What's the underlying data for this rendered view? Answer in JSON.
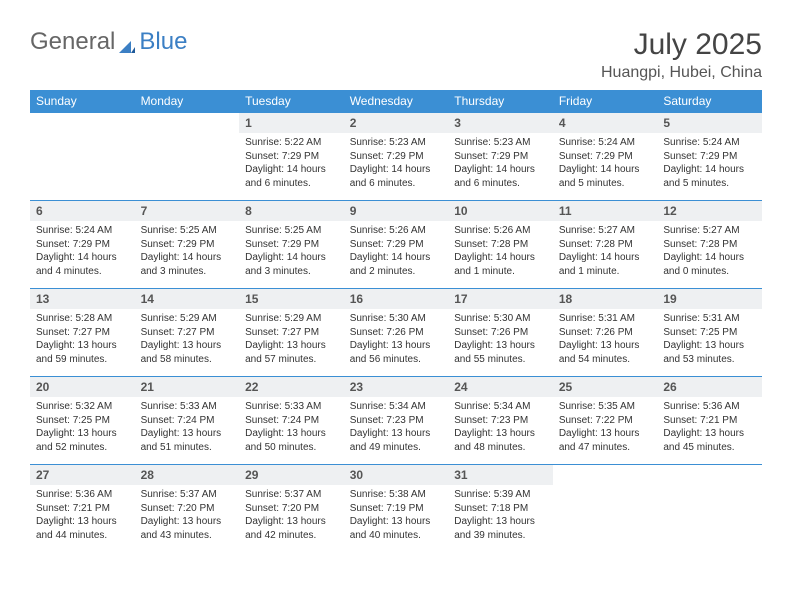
{
  "brand": {
    "part1": "General",
    "part2": "Blue"
  },
  "title": "July 2025",
  "location": "Huangpi, Hubei, China",
  "colors": {
    "header_bg": "#3b8fd4",
    "header_text": "#ffffff",
    "daynum_bg": "#eef0f2",
    "rule": "#3b8fd4",
    "brand_blue": "#3b7fc4",
    "brand_gray": "#666666"
  },
  "weekdays": [
    "Sunday",
    "Monday",
    "Tuesday",
    "Wednesday",
    "Thursday",
    "Friday",
    "Saturday"
  ],
  "weeks": [
    [
      null,
      null,
      {
        "n": "1",
        "sr": "Sunrise: 5:22 AM",
        "ss": "Sunset: 7:29 PM",
        "dl": "Daylight: 14 hours and 6 minutes."
      },
      {
        "n": "2",
        "sr": "Sunrise: 5:23 AM",
        "ss": "Sunset: 7:29 PM",
        "dl": "Daylight: 14 hours and 6 minutes."
      },
      {
        "n": "3",
        "sr": "Sunrise: 5:23 AM",
        "ss": "Sunset: 7:29 PM",
        "dl": "Daylight: 14 hours and 6 minutes."
      },
      {
        "n": "4",
        "sr": "Sunrise: 5:24 AM",
        "ss": "Sunset: 7:29 PM",
        "dl": "Daylight: 14 hours and 5 minutes."
      },
      {
        "n": "5",
        "sr": "Sunrise: 5:24 AM",
        "ss": "Sunset: 7:29 PM",
        "dl": "Daylight: 14 hours and 5 minutes."
      }
    ],
    [
      {
        "n": "6",
        "sr": "Sunrise: 5:24 AM",
        "ss": "Sunset: 7:29 PM",
        "dl": "Daylight: 14 hours and 4 minutes."
      },
      {
        "n": "7",
        "sr": "Sunrise: 5:25 AM",
        "ss": "Sunset: 7:29 PM",
        "dl": "Daylight: 14 hours and 3 minutes."
      },
      {
        "n": "8",
        "sr": "Sunrise: 5:25 AM",
        "ss": "Sunset: 7:29 PM",
        "dl": "Daylight: 14 hours and 3 minutes."
      },
      {
        "n": "9",
        "sr": "Sunrise: 5:26 AM",
        "ss": "Sunset: 7:29 PM",
        "dl": "Daylight: 14 hours and 2 minutes."
      },
      {
        "n": "10",
        "sr": "Sunrise: 5:26 AM",
        "ss": "Sunset: 7:28 PM",
        "dl": "Daylight: 14 hours and 1 minute."
      },
      {
        "n": "11",
        "sr": "Sunrise: 5:27 AM",
        "ss": "Sunset: 7:28 PM",
        "dl": "Daylight: 14 hours and 1 minute."
      },
      {
        "n": "12",
        "sr": "Sunrise: 5:27 AM",
        "ss": "Sunset: 7:28 PM",
        "dl": "Daylight: 14 hours and 0 minutes."
      }
    ],
    [
      {
        "n": "13",
        "sr": "Sunrise: 5:28 AM",
        "ss": "Sunset: 7:27 PM",
        "dl": "Daylight: 13 hours and 59 minutes."
      },
      {
        "n": "14",
        "sr": "Sunrise: 5:29 AM",
        "ss": "Sunset: 7:27 PM",
        "dl": "Daylight: 13 hours and 58 minutes."
      },
      {
        "n": "15",
        "sr": "Sunrise: 5:29 AM",
        "ss": "Sunset: 7:27 PM",
        "dl": "Daylight: 13 hours and 57 minutes."
      },
      {
        "n": "16",
        "sr": "Sunrise: 5:30 AM",
        "ss": "Sunset: 7:26 PM",
        "dl": "Daylight: 13 hours and 56 minutes."
      },
      {
        "n": "17",
        "sr": "Sunrise: 5:30 AM",
        "ss": "Sunset: 7:26 PM",
        "dl": "Daylight: 13 hours and 55 minutes."
      },
      {
        "n": "18",
        "sr": "Sunrise: 5:31 AM",
        "ss": "Sunset: 7:26 PM",
        "dl": "Daylight: 13 hours and 54 minutes."
      },
      {
        "n": "19",
        "sr": "Sunrise: 5:31 AM",
        "ss": "Sunset: 7:25 PM",
        "dl": "Daylight: 13 hours and 53 minutes."
      }
    ],
    [
      {
        "n": "20",
        "sr": "Sunrise: 5:32 AM",
        "ss": "Sunset: 7:25 PM",
        "dl": "Daylight: 13 hours and 52 minutes."
      },
      {
        "n": "21",
        "sr": "Sunrise: 5:33 AM",
        "ss": "Sunset: 7:24 PM",
        "dl": "Daylight: 13 hours and 51 minutes."
      },
      {
        "n": "22",
        "sr": "Sunrise: 5:33 AM",
        "ss": "Sunset: 7:24 PM",
        "dl": "Daylight: 13 hours and 50 minutes."
      },
      {
        "n": "23",
        "sr": "Sunrise: 5:34 AM",
        "ss": "Sunset: 7:23 PM",
        "dl": "Daylight: 13 hours and 49 minutes."
      },
      {
        "n": "24",
        "sr": "Sunrise: 5:34 AM",
        "ss": "Sunset: 7:23 PM",
        "dl": "Daylight: 13 hours and 48 minutes."
      },
      {
        "n": "25",
        "sr": "Sunrise: 5:35 AM",
        "ss": "Sunset: 7:22 PM",
        "dl": "Daylight: 13 hours and 47 minutes."
      },
      {
        "n": "26",
        "sr": "Sunrise: 5:36 AM",
        "ss": "Sunset: 7:21 PM",
        "dl": "Daylight: 13 hours and 45 minutes."
      }
    ],
    [
      {
        "n": "27",
        "sr": "Sunrise: 5:36 AM",
        "ss": "Sunset: 7:21 PM",
        "dl": "Daylight: 13 hours and 44 minutes."
      },
      {
        "n": "28",
        "sr": "Sunrise: 5:37 AM",
        "ss": "Sunset: 7:20 PM",
        "dl": "Daylight: 13 hours and 43 minutes."
      },
      {
        "n": "29",
        "sr": "Sunrise: 5:37 AM",
        "ss": "Sunset: 7:20 PM",
        "dl": "Daylight: 13 hours and 42 minutes."
      },
      {
        "n": "30",
        "sr": "Sunrise: 5:38 AM",
        "ss": "Sunset: 7:19 PM",
        "dl": "Daylight: 13 hours and 40 minutes."
      },
      {
        "n": "31",
        "sr": "Sunrise: 5:39 AM",
        "ss": "Sunset: 7:18 PM",
        "dl": "Daylight: 13 hours and 39 minutes."
      },
      null,
      null
    ]
  ]
}
